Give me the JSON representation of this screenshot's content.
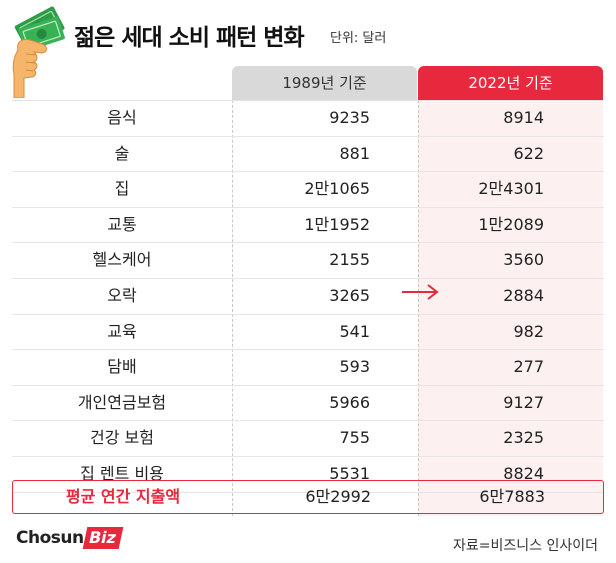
{
  "header": {
    "title": "젊은 세대 소비 패턴 변화",
    "unit": "단위: 달러",
    "icon": "money-hand-icon"
  },
  "columns": {
    "col1": "1989년 기준",
    "col2": "2022년 기준"
  },
  "rows": [
    {
      "label": "음식",
      "v1989": "9235",
      "v2022": "8914"
    },
    {
      "label": "술",
      "v1989": "881",
      "v2022": "622"
    },
    {
      "label": "집",
      "v1989": "2만1065",
      "v2022": "2만4301"
    },
    {
      "label": "교통",
      "v1989": "1만1952",
      "v2022": "1만2089"
    },
    {
      "label": "헬스케어",
      "v1989": "2155",
      "v2022": "3560"
    },
    {
      "label": "오락",
      "v1989": "3265",
      "v2022": "2884"
    },
    {
      "label": "교육",
      "v1989": "541",
      "v2022": "982"
    },
    {
      "label": "담배",
      "v1989": "593",
      "v2022": "277"
    },
    {
      "label": "개인연금보험",
      "v1989": "5966",
      "v2022": "9127"
    },
    {
      "label": "건강 보험",
      "v1989": "755",
      "v2022": "2325"
    },
    {
      "label": "집 렌트 비용",
      "v1989": "5531",
      "v2022": "8824"
    }
  ],
  "total": {
    "label": "평균 연간 지출액",
    "v1989": "6만2992",
    "v2022": "6만7883"
  },
  "footer": {
    "logo_part1": "Chosun",
    "logo_part2": "Biz",
    "source": "자료=비즈니스 인사이더"
  },
  "colors": {
    "accent": "#e8283c",
    "header_gray": "#d9d9d9",
    "highlight_bg": "#fdf0f0"
  }
}
